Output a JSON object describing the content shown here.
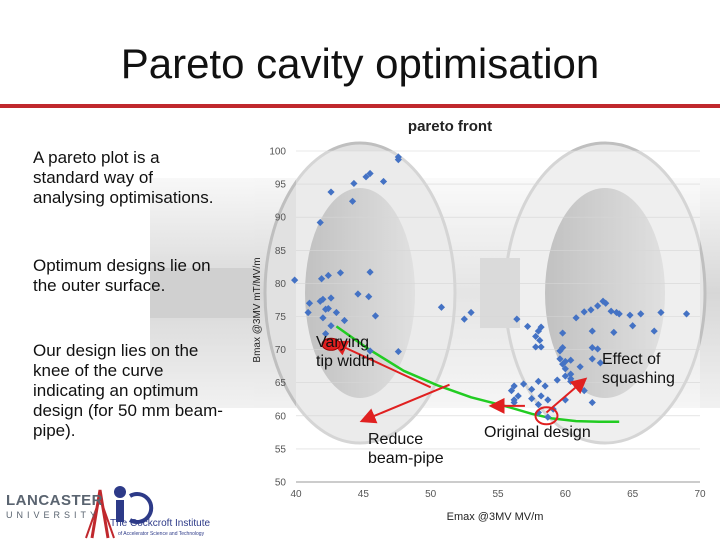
{
  "slide": {
    "title": "Pareto cavity optimisation",
    "paragraphs": [
      "A pareto plot is a standard way of analysing optimisations.",
      "Optimum designs lie on the outer surface.",
      "Our design lies on the knee of the curve indicating an optimum design (for 50 mm beam-pipe)."
    ],
    "annotations": {
      "varying_tip_width": "Varying tip width",
      "reduce_beam_pipe": "Reduce beam-pipe",
      "effect_of_squashing": "Effect of squashing",
      "original_design": "Original design"
    },
    "logos": {
      "lancaster": "LANCASTER",
      "university": "UNIVERSITY",
      "cockcroft": "The Cockcroft Institute",
      "cockcroft_sub": "of Accelerator Science and Technology"
    }
  },
  "chart_data": {
    "type": "scatter",
    "title": "pareto front",
    "xlabel": "Emax @3MV MV/m",
    "ylabel": "Bmax @3MV mT/MV/m",
    "xlim": [
      40,
      70
    ],
    "ylim": [
      50,
      100
    ],
    "xticks": [
      40,
      45,
      50,
      55,
      60,
      65,
      70
    ],
    "yticks": [
      50,
      55,
      60,
      65,
      70,
      75,
      80,
      85,
      90,
      95,
      100
    ],
    "colors": {
      "points": "#4472c4",
      "front": "#22cc22",
      "arrow": "#e02020",
      "highlight": "#e02020"
    },
    "points": [
      [
        47.6,
        99.1
      ],
      [
        47.6,
        98.7
      ],
      [
        45.5,
        96.6
      ],
      [
        45.2,
        96.1
      ],
      [
        44.3,
        95.1
      ],
      [
        46.5,
        95.4
      ],
      [
        42.6,
        93.8
      ],
      [
        44.2,
        92.4
      ],
      [
        41.8,
        89.2
      ],
      [
        45.5,
        81.7
      ],
      [
        43.3,
        81.6
      ],
      [
        42.4,
        81.2
      ],
      [
        41.9,
        80.7
      ],
      [
        39.9,
        80.5
      ],
      [
        45.4,
        78.0
      ],
      [
        44.6,
        78.4
      ],
      [
        42.6,
        77.8
      ],
      [
        41.0,
        77.0
      ],
      [
        42.0,
        77.6
      ],
      [
        41.8,
        77.3
      ],
      [
        42.4,
        76.2
      ],
      [
        43.0,
        75.6
      ],
      [
        42.2,
        76.1
      ],
      [
        40.9,
        75.6
      ],
      [
        42.0,
        74.8
      ],
      [
        43.6,
        74.4
      ],
      [
        45.9,
        75.1
      ],
      [
        42.6,
        73.6
      ],
      [
        42.2,
        72.4
      ],
      [
        42.8,
        71.2
      ],
      [
        45.5,
        69.8
      ],
      [
        47.6,
        69.7
      ],
      [
        50.8,
        76.4
      ],
      [
        53.0,
        75.6
      ],
      [
        52.5,
        74.6
      ],
      [
        56.4,
        74.6
      ],
      [
        57.2,
        73.5
      ],
      [
        58.2,
        73.4
      ],
      [
        58.0,
        72.8
      ],
      [
        57.8,
        72.0
      ],
      [
        59.8,
        72.5
      ],
      [
        58.1,
        71.4
      ],
      [
        58.2,
        70.4
      ],
      [
        57.8,
        70.4
      ],
      [
        59.8,
        70.3
      ],
      [
        59.6,
        69.8
      ],
      [
        59.6,
        68.6
      ],
      [
        62.0,
        68.6
      ],
      [
        60.0,
        68.2
      ],
      [
        60.4,
        68.4
      ],
      [
        59.8,
        67.8
      ],
      [
        61.1,
        67.4
      ],
      [
        60.0,
        67.1
      ],
      [
        60.4,
        66.3
      ],
      [
        60.0,
        66.0
      ],
      [
        60.4,
        65.6
      ],
      [
        60.4,
        65.2
      ],
      [
        59.4,
        65.4
      ],
      [
        58.0,
        65.2
      ],
      [
        57.5,
        64.0
      ],
      [
        56.9,
        64.8
      ],
      [
        56.2,
        64.5
      ],
      [
        58.5,
        64.5
      ],
      [
        56.0,
        63.8
      ],
      [
        56.5,
        63.0
      ],
      [
        56.2,
        62.4
      ],
      [
        56.2,
        62.0
      ],
      [
        57.5,
        62.6
      ],
      [
        58.2,
        63.0
      ],
      [
        58.7,
        62.4
      ],
      [
        60.0,
        62.4
      ],
      [
        58.0,
        61.7
      ],
      [
        59.1,
        61.0
      ],
      [
        58.7,
        59.8
      ],
      [
        58.0,
        60.5
      ],
      [
        60.8,
        74.8
      ],
      [
        61.4,
        75.7
      ],
      [
        61.9,
        76.0
      ],
      [
        62.4,
        76.6
      ],
      [
        62.8,
        77.3
      ],
      [
        63.0,
        77.0
      ],
      [
        63.4,
        75.8
      ],
      [
        63.8,
        75.6
      ],
      [
        64.0,
        75.4
      ],
      [
        64.8,
        75.2
      ],
      [
        65.0,
        73.6
      ],
      [
        65.6,
        75.4
      ],
      [
        67.1,
        75.6
      ],
      [
        69.0,
        75.4
      ],
      [
        66.6,
        72.8
      ],
      [
        63.6,
        72.6
      ],
      [
        62.0,
        72.8
      ],
      [
        62.0,
        70.3
      ],
      [
        62.4,
        70.1
      ],
      [
        62.6,
        68.0
      ],
      [
        61.1,
        64.8
      ],
      [
        61.4,
        63.8
      ],
      [
        62.0,
        62.0
      ]
    ],
    "front_curve": [
      [
        43.0,
        73.5
      ],
      [
        45.3,
        70.2
      ],
      [
        48.0,
        66.8
      ],
      [
        50.5,
        64.6
      ],
      [
        53.0,
        62.8
      ],
      [
        55.5,
        61.5
      ],
      [
        57.5,
        60.3
      ],
      [
        59.0,
        59.6
      ],
      [
        60.8,
        59.2
      ],
      [
        62.5,
        59.1
      ],
      [
        64.0,
        59.1
      ]
    ],
    "arrows": [
      {
        "from": [
          50.0,
          64.3
        ],
        "to": [
          42.9,
          71.0
        ]
      },
      {
        "from": [
          51.4,
          64.7
        ],
        "to": [
          45.0,
          59.3
        ]
      },
      {
        "from": [
          58.6,
          60.5
        ],
        "to": [
          61.4,
          65.4
        ]
      },
      {
        "from": [
          57.0,
          61.5
        ],
        "to": [
          54.6,
          61.5
        ]
      }
    ],
    "highlight_point": [
      58.6,
      60.0
    ]
  }
}
